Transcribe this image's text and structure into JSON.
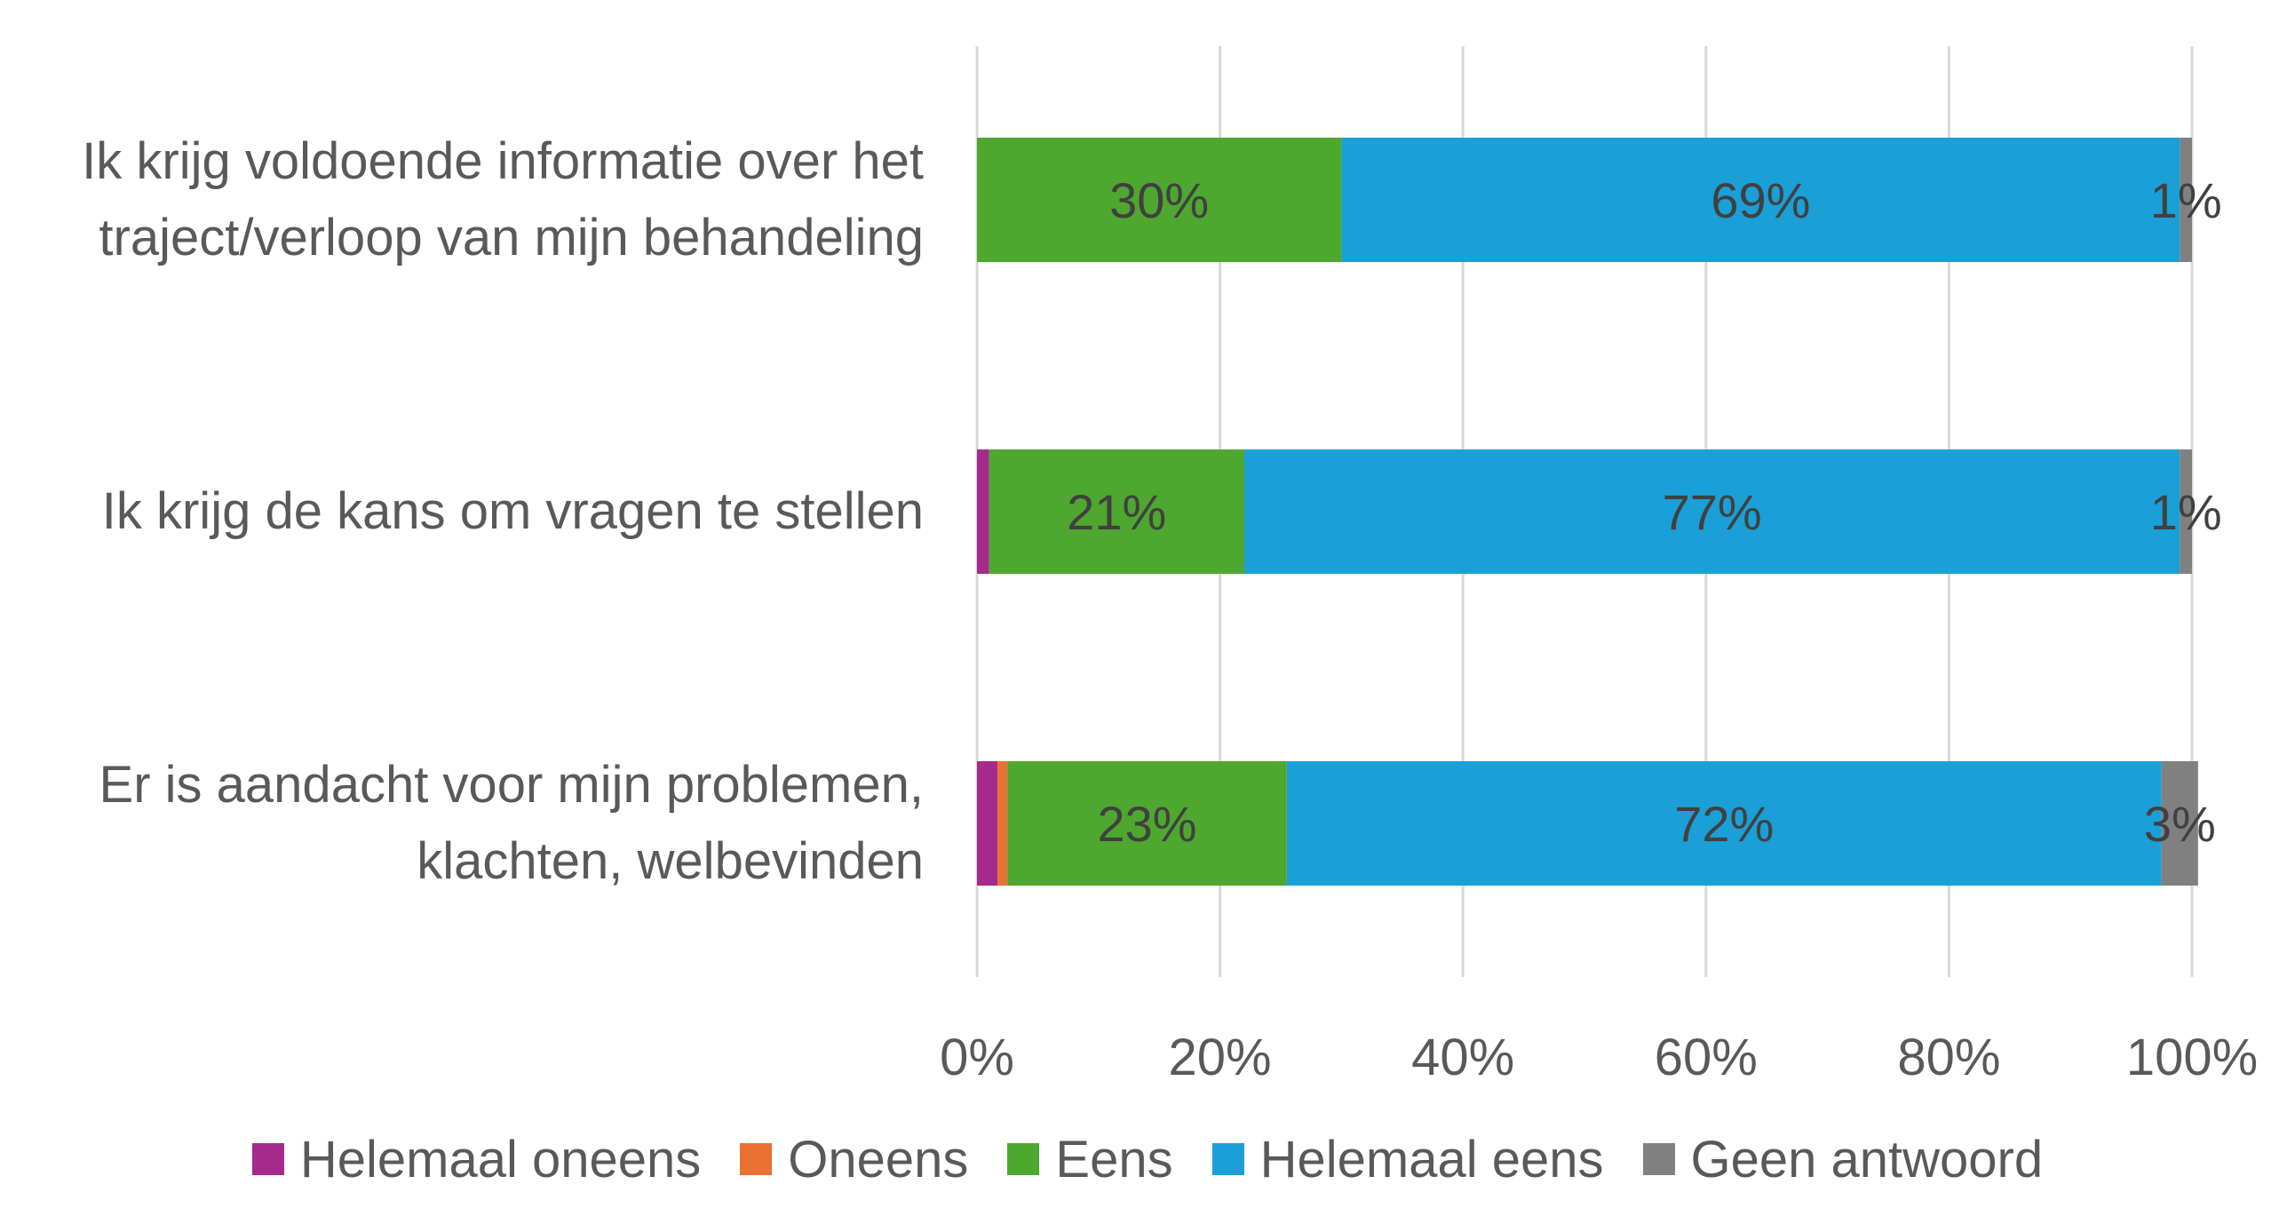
{
  "chart_data": {
    "type": "bar",
    "orientation": "horizontal",
    "stacked": true,
    "categories": [
      [
        "Ik krijg voldoende informatie over het",
        "traject/verloop van mijn behandeling"
      ],
      [
        "Ik krijg de kans om vragen te stellen"
      ],
      [
        "Er is aandacht voor mijn problemen,",
        "klachten, welbevinden"
      ]
    ],
    "series": [
      {
        "name": "Helemaal oneens",
        "color": "#A52A8C",
        "values": [
          0,
          1,
          1.7
        ],
        "labels": [
          "",
          "",
          ""
        ]
      },
      {
        "name": "Oneens",
        "color": "#E97132",
        "values": [
          0,
          0,
          0.8
        ],
        "labels": [
          "",
          "",
          ""
        ]
      },
      {
        "name": "Eens",
        "color": "#4EA72E",
        "values": [
          30,
          21,
          23
        ],
        "labels": [
          "30%",
          "21%",
          "23%"
        ]
      },
      {
        "name": "Helemaal eens",
        "color": "#1A9FD7",
        "values": [
          69,
          77,
          72
        ],
        "labels": [
          "69%",
          "77%",
          "72%"
        ]
      },
      {
        "name": "Geen antwoord",
        "color": "#808080",
        "values": [
          1,
          1,
          3
        ],
        "labels": [
          "1%",
          "1%",
          "3%"
        ]
      }
    ],
    "xlim": [
      0,
      100
    ],
    "x_ticks": [
      "0%",
      "20%",
      "40%",
      "60%",
      "80%",
      "100%"
    ],
    "grid": "vertical",
    "legend": "bottom"
  }
}
